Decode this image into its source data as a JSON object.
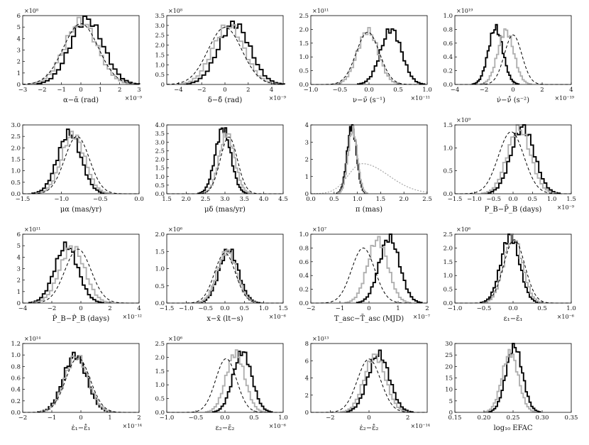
{
  "figure": {
    "background": "#ffffff"
  },
  "chart_data": [
    {
      "id": "p1",
      "type": "histogram",
      "xlabel": "α−ᾱ (rad)",
      "x_multiplier": "×10⁻⁹",
      "y_multiplier": "×10⁸",
      "xlim": [
        -3,
        3
      ],
      "ylim": [
        0,
        6
      ],
      "xticks": [
        "−3",
        "−2",
        "−1",
        "0",
        "1",
        "2",
        "3"
      ],
      "yticks": [
        "0",
        "1",
        "2",
        "3",
        "4",
        "5",
        "6"
      ],
      "series": [
        {
          "style": "solid-black",
          "center": 0.3,
          "sigma": 0.85,
          "peak": 5.7
        },
        {
          "style": "solid-gray",
          "center": 0.0,
          "sigma": 0.85,
          "peak": 5.5
        },
        {
          "style": "dashed-black",
          "center": 0.0,
          "sigma": 0.9,
          "peak": 5.3
        }
      ]
    },
    {
      "id": "p2",
      "type": "histogram",
      "xlabel": "δ−δ̄ (rad)",
      "x_multiplier": "×10⁻⁹",
      "y_multiplier": "×10⁸",
      "xlim": [
        -5,
        5
      ],
      "ylim": [
        0,
        3.5
      ],
      "xticks": [
        "−4",
        "−2",
        "0",
        "2",
        "4"
      ],
      "yticks": [
        "0",
        "0.5",
        "1.0",
        "1.5",
        "2.0",
        "2.5",
        "3.0",
        "3.5"
      ],
      "series": [
        {
          "style": "solid-black",
          "center": 0.8,
          "sigma": 1.35,
          "peak": 3.1
        },
        {
          "style": "solid-gray",
          "center": 0.3,
          "sigma": 1.35,
          "peak": 3.0
        },
        {
          "style": "dashed-black",
          "center": 0.0,
          "sigma": 1.45,
          "peak": 2.9
        }
      ]
    },
    {
      "id": "p3",
      "type": "histogram",
      "xlabel": "ν−ν̄ (s⁻¹)",
      "x_multiplier": "×10⁻¹¹",
      "y_multiplier": "×10¹¹",
      "xlim": [
        -1.0,
        1.0
      ],
      "ylim": [
        0,
        2.5
      ],
      "xticks": [
        "−1.0",
        "−0.5",
        "0.0",
        "0.5",
        "1.0"
      ],
      "yticks": [
        "0.0",
        "0.5",
        "1.0",
        "1.5",
        "2.0",
        "2.5"
      ],
      "series": [
        {
          "style": "solid-black",
          "center": 0.38,
          "sigma": 0.18,
          "peak": 2.0
        },
        {
          "style": "solid-gray",
          "center": -0.02,
          "sigma": 0.18,
          "peak": 1.95
        },
        {
          "style": "dashed-black",
          "center": -0.02,
          "sigma": 0.2,
          "peak": 1.9
        }
      ]
    },
    {
      "id": "p4",
      "type": "histogram",
      "xlabel": "ν̇−ν̄̇ (s⁻²)",
      "x_multiplier": "×10⁻¹⁹",
      "y_multiplier": "×10¹⁹",
      "xlim": [
        -4,
        4
      ],
      "ylim": [
        0,
        1.0
      ],
      "xticks": [
        "−4",
        "−2",
        "0",
        "2",
        "4"
      ],
      "yticks": [
        "0.0",
        "0.2",
        "0.4",
        "0.6",
        "0.8",
        "1.0"
      ],
      "series": [
        {
          "style": "solid-black",
          "center": -1.2,
          "sigma": 0.5,
          "peak": 0.82
        },
        {
          "style": "solid-gray",
          "center": -0.5,
          "sigma": 0.55,
          "peak": 0.78
        },
        {
          "style": "dashed-black",
          "center": 0.0,
          "sigma": 0.6,
          "peak": 0.72
        }
      ]
    },
    {
      "id": "p5",
      "type": "histogram",
      "xlabel": "μα (mas/yr)",
      "x_multiplier": "",
      "y_multiplier": "",
      "xlim": [
        -1.5,
        0.0
      ],
      "ylim": [
        0,
        3.0
      ],
      "xticks": [
        "−1.5",
        "−1.0",
        "−0.5",
        "0.0"
      ],
      "yticks": [
        "0.0",
        "0.5",
        "1.0",
        "1.5",
        "2.0",
        "2.5",
        "3.0"
      ],
      "series": [
        {
          "style": "solid-black",
          "center": -0.9,
          "sigma": 0.15,
          "peak": 2.65
        },
        {
          "style": "solid-gray",
          "center": -0.85,
          "sigma": 0.15,
          "peak": 2.6
        },
        {
          "style": "dashed-black",
          "center": -0.8,
          "sigma": 0.16,
          "peak": 2.5
        }
      ]
    },
    {
      "id": "p6",
      "type": "histogram",
      "xlabel": "μδ (mas/yr)",
      "x_multiplier": "",
      "y_multiplier": "",
      "xlim": [
        1.5,
        4.5
      ],
      "ylim": [
        0,
        4.0
      ],
      "xticks": [
        "1.5",
        "2.0",
        "2.5",
        "3.0",
        "3.5",
        "4.0",
        "4.5"
      ],
      "yticks": [
        "0.0",
        "0.5",
        "1.0",
        "1.5",
        "2.0",
        "2.5",
        "3.0",
        "3.5",
        "4.0"
      ],
      "series": [
        {
          "style": "solid-black",
          "center": 2.95,
          "sigma": 0.2,
          "peak": 3.8
        },
        {
          "style": "solid-gray",
          "center": 3.05,
          "sigma": 0.2,
          "peak": 3.5
        },
        {
          "style": "dashed-black",
          "center": 3.1,
          "sigma": 0.22,
          "peak": 3.3
        }
      ]
    },
    {
      "id": "p7",
      "type": "histogram",
      "xlabel": "π (mas)",
      "x_multiplier": "",
      "y_multiplier": "",
      "xlim": [
        0.0,
        2.5
      ],
      "ylim": [
        0,
        4
      ],
      "xticks": [
        "0.0",
        "0.5",
        "1.0",
        "1.5",
        "2.0",
        "2.5"
      ],
      "yticks": [
        "0",
        "1",
        "2",
        "3",
        "4"
      ],
      "series": [
        {
          "style": "solid-black",
          "center": 0.88,
          "sigma": 0.1,
          "peak": 3.95
        },
        {
          "style": "solid-gray",
          "center": 0.9,
          "sigma": 0.1,
          "peak": 3.7
        },
        {
          "style": "dotted-gray",
          "center": 1.1,
          "sigma": 0.3,
          "peak": 1.75,
          "skew": true
        }
      ]
    },
    {
      "id": "p8",
      "type": "histogram",
      "xlabel": "P_B−P̄_B (days)",
      "x_multiplier": "×10⁻⁹",
      "y_multiplier": "×10⁹",
      "xlim": [
        -1.5,
        1.5
      ],
      "ylim": [
        0,
        1.5
      ],
      "xticks": [
        "−1.5",
        "−1.0",
        "−0.5",
        "0.0",
        "0.5",
        "1.0",
        "1.5"
      ],
      "yticks": [
        "0.0",
        "0.5",
        "1.0",
        "1.5"
      ],
      "series": [
        {
          "style": "solid-black",
          "center": 0.25,
          "sigma": 0.3,
          "peak": 1.45
        },
        {
          "style": "solid-gray",
          "center": 0.15,
          "sigma": 0.3,
          "peak": 1.42
        },
        {
          "style": "dashed-black",
          "center": -0.05,
          "sigma": 0.33,
          "peak": 1.35
        }
      ]
    },
    {
      "id": "p9",
      "type": "histogram",
      "xlabel": "Ṗ_B−Ṗ̄_B (days)",
      "x_multiplier": "×10⁻¹²",
      "y_multiplier": "×10¹¹",
      "xlim": [
        -4,
        4
      ],
      "ylim": [
        0,
        6
      ],
      "xticks": [
        "−4",
        "−2",
        "0",
        "2",
        "4"
      ],
      "yticks": [
        "0",
        "1",
        "2",
        "3",
        "4",
        "5",
        "6"
      ],
      "series": [
        {
          "style": "solid-black",
          "center": -1.0,
          "sigma": 0.8,
          "peak": 5.0
        },
        {
          "style": "solid-gray",
          "center": -0.6,
          "sigma": 0.85,
          "peak": 4.9
        },
        {
          "style": "dashed-black",
          "center": -0.2,
          "sigma": 0.9,
          "peak": 4.7
        }
      ]
    },
    {
      "id": "p10",
      "type": "histogram",
      "xlabel": "x−x̄ (lt−s)",
      "x_multiplier": "×10⁻⁶",
      "y_multiplier": "×10⁶",
      "xlim": [
        -1.5,
        1.5
      ],
      "ylim": [
        0,
        2.0
      ],
      "xticks": [
        "−1.5",
        "−1.0",
        "−0.5",
        "0.0",
        "0.5",
        "1.0",
        "1.5"
      ],
      "yticks": [
        "0.0",
        "0.5",
        "1.0",
        "1.5",
        "2.0"
      ],
      "series": [
        {
          "style": "solid-black",
          "center": 0.1,
          "sigma": 0.25,
          "peak": 1.55
        },
        {
          "style": "solid-gray",
          "center": 0.05,
          "sigma": 0.25,
          "peak": 1.5
        },
        {
          "style": "dashed-black",
          "center": 0.0,
          "sigma": 0.27,
          "peak": 1.45
        }
      ]
    },
    {
      "id": "p11",
      "type": "histogram",
      "xlabel": "T_asc−T̄_asc (MJD)",
      "x_multiplier": "×10⁻⁷",
      "y_multiplier": "×10⁷",
      "xlim": [
        -2,
        2
      ],
      "ylim": [
        0,
        1.0
      ],
      "xticks": [
        "−2",
        "−1",
        "0",
        "1",
        "2"
      ],
      "yticks": [
        "0.0",
        "0.2",
        "0.4",
        "0.6",
        "0.8",
        "1.0"
      ],
      "series": [
        {
          "style": "solid-black",
          "center": 0.7,
          "sigma": 0.35,
          "peak": 0.95
        },
        {
          "style": "solid-gray",
          "center": 0.3,
          "sigma": 0.35,
          "peak": 0.92
        },
        {
          "style": "dashed-black",
          "center": -0.2,
          "sigma": 0.4,
          "peak": 0.8
        }
      ]
    },
    {
      "id": "p12",
      "type": "histogram",
      "xlabel": "ε₁−ε̄₁",
      "x_multiplier": "×10⁻⁶",
      "y_multiplier": "×10⁶",
      "xlim": [
        -1.0,
        1.0
      ],
      "ylim": [
        0,
        2.5
      ],
      "xticks": [
        "−1.0",
        "−0.5",
        "0.0",
        "0.5",
        "1.0"
      ],
      "yticks": [
        "0.0",
        "0.5",
        "1.0",
        "1.5",
        "2.0",
        "2.5"
      ],
      "series": [
        {
          "style": "solid-black",
          "center": -0.05,
          "sigma": 0.16,
          "peak": 2.45
        },
        {
          "style": "solid-gray",
          "center": 0.0,
          "sigma": 0.16,
          "peak": 2.4
        },
        {
          "style": "dashed-black",
          "center": 0.02,
          "sigma": 0.18,
          "peak": 2.3
        }
      ]
    },
    {
      "id": "p13",
      "type": "histogram",
      "xlabel": "ε̇₁−ε̄̇₁",
      "x_multiplier": "×10⁻¹⁴",
      "y_multiplier": "×10¹⁴",
      "xlim": [
        -2,
        2
      ],
      "ylim": [
        0,
        1.2
      ],
      "xticks": [
        "−2",
        "−1",
        "0",
        "1",
        "2"
      ],
      "yticks": [
        "0.0",
        "0.2",
        "0.4",
        "0.6",
        "0.8",
        "1.0",
        "1.2"
      ],
      "series": [
        {
          "style": "solid-black",
          "center": -0.2,
          "sigma": 0.4,
          "peak": 1.0
        },
        {
          "style": "solid-gray",
          "center": -0.15,
          "sigma": 0.4,
          "peak": 0.98
        },
        {
          "style": "dashed-black",
          "center": -0.1,
          "sigma": 0.42,
          "peak": 0.95
        }
      ]
    },
    {
      "id": "p14",
      "type": "histogram",
      "xlabel": "ε₂−ε̄₂",
      "x_multiplier": "×10⁻⁶",
      "y_multiplier": "×10⁶",
      "xlim": [
        -1.0,
        1.0
      ],
      "ylim": [
        0,
        2.5
      ],
      "xticks": [
        "−1.0",
        "−0.5",
        "0.0",
        "0.5",
        "1.0"
      ],
      "yticks": [
        "0.0",
        "0.5",
        "1.0",
        "1.5",
        "2.0",
        "2.5"
      ],
      "series": [
        {
          "style": "solid-black",
          "center": 0.3,
          "sigma": 0.16,
          "peak": 2.2
        },
        {
          "style": "solid-gray",
          "center": 0.18,
          "sigma": 0.16,
          "peak": 2.15
        },
        {
          "style": "dashed-black",
          "center": 0.02,
          "sigma": 0.18,
          "peak": 1.95
        }
      ]
    },
    {
      "id": "p15",
      "type": "histogram",
      "xlabel": "ε̇₂−ε̄̇₂",
      "x_multiplier": "×10⁻¹⁴",
      "y_multiplier": "×10¹³",
      "xlim": [
        -3,
        3
      ],
      "ylim": [
        0,
        8
      ],
      "xticks": [
        "−2",
        "0",
        "2"
      ],
      "yticks": [
        "0",
        "2",
        "4",
        "6",
        "8"
      ],
      "series": [
        {
          "style": "solid-black",
          "center": 0.5,
          "sigma": 0.55,
          "peak": 6.8
        },
        {
          "style": "solid-gray",
          "center": 0.3,
          "sigma": 0.55,
          "peak": 6.6
        },
        {
          "style": "dashed-black",
          "center": 0.0,
          "sigma": 0.6,
          "peak": 6.2
        }
      ]
    },
    {
      "id": "p16",
      "type": "histogram",
      "xlabel": "log₁₀ EFAC",
      "x_multiplier": "",
      "y_multiplier": "",
      "xlim": [
        0.15,
        0.35
      ],
      "ylim": [
        0,
        30
      ],
      "xticks": [
        "0.15",
        "0.20",
        "0.25",
        "0.30",
        "0.35"
      ],
      "yticks": [
        "0",
        "5",
        "10",
        "15",
        "20",
        "25",
        "30"
      ],
      "series": [
        {
          "style": "solid-black",
          "center": 0.252,
          "sigma": 0.014,
          "peak": 29
        },
        {
          "style": "solid-gray",
          "center": 0.245,
          "sigma": 0.014,
          "peak": 26
        }
      ]
    }
  ]
}
